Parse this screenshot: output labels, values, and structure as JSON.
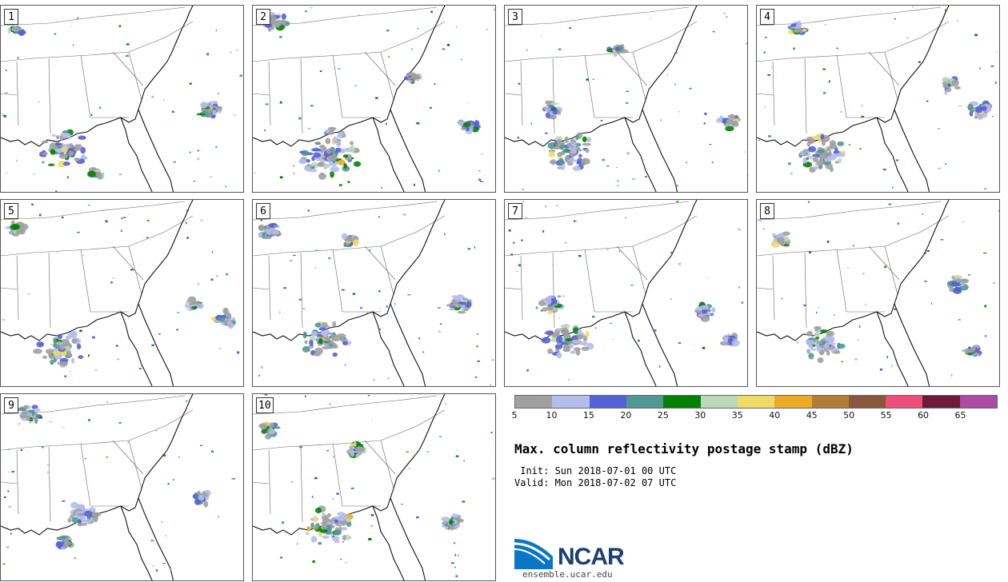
{
  "panels": [
    {
      "label": "1"
    },
    {
      "label": "2"
    },
    {
      "label": "3"
    },
    {
      "label": "4"
    },
    {
      "label": "5"
    },
    {
      "label": "6"
    },
    {
      "label": "7"
    },
    {
      "label": "8"
    },
    {
      "label": "9"
    },
    {
      "label": "10"
    }
  ],
  "colorbar": {
    "colors": [
      "#a0a0a0",
      "#b4bdec",
      "#5561d9",
      "#4f9896",
      "#038202",
      "#bad9b8",
      "#f0dc64",
      "#edab21",
      "#b37d36",
      "#8a563c",
      "#ef4e7b",
      "#701a3a",
      "#ac4aa5"
    ],
    "ticks": [
      "5",
      "10",
      "15",
      "20",
      "25",
      "30",
      "35",
      "40",
      "45",
      "50",
      "55",
      "60",
      "65"
    ]
  },
  "title": "Max. column reflectivity postage stamp (dBZ)",
  "init": " Init: Sun 2018-07-01 00 UTC",
  "valid": "Valid: Mon 2018-07-02 07 UTC",
  "logo": {
    "wordmark": "NCAR",
    "url": "ensemble.ucar.edu"
  }
}
